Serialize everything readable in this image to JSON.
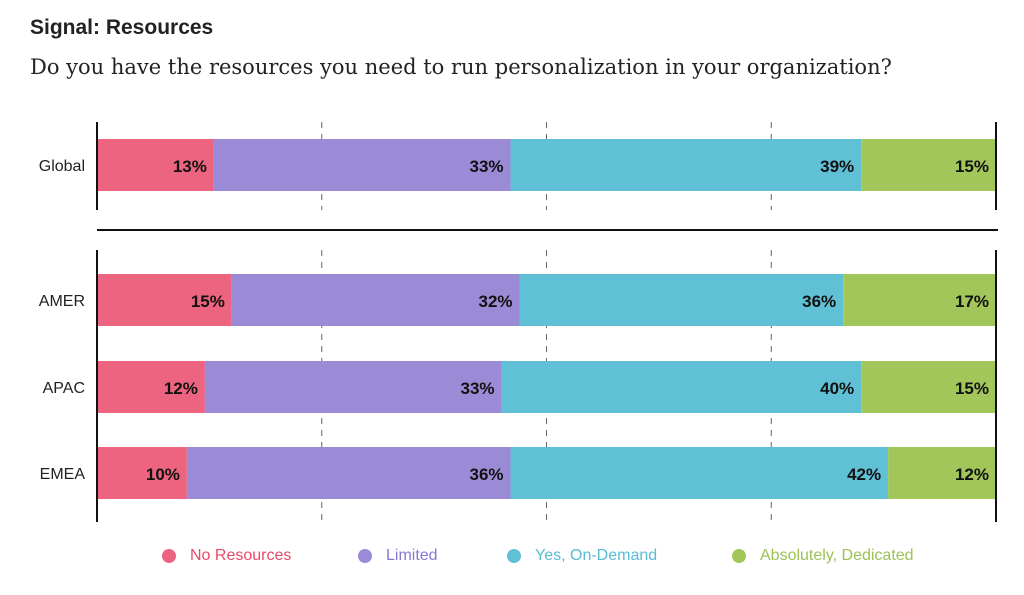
{
  "title": "Signal: Resources",
  "subtitle": "Do you have the resources you need to run personalization in your organization?",
  "chart_data": {
    "type": "bar",
    "orientation": "horizontal",
    "stacked": true,
    "categories": [
      "Global",
      "AMER",
      "APAC",
      "EMEA"
    ],
    "series": [
      {
        "name": "No Resources",
        "color": "#ec6480",
        "values": [
          13,
          15,
          12,
          10
        ]
      },
      {
        "name": "Limited",
        "color": "#9b8bd6",
        "values": [
          33,
          32,
          33,
          36
        ]
      },
      {
        "name": "Yes, On-Demand",
        "color": "#60c0d6",
        "values": [
          39,
          36,
          40,
          42
        ]
      },
      {
        "name": "Absolutely, Dedicated",
        "color": "#a3c65a",
        "values": [
          15,
          17,
          15,
          12
        ]
      }
    ],
    "xlim": [
      0,
      100
    ],
    "grid": "dashed vertical at 25, 50, 75",
    "legend_position": "bottom",
    "legend_text_colors": [
      "#e84a6a",
      "#8a78d3",
      "#58bcd3",
      "#9dc255"
    ]
  }
}
